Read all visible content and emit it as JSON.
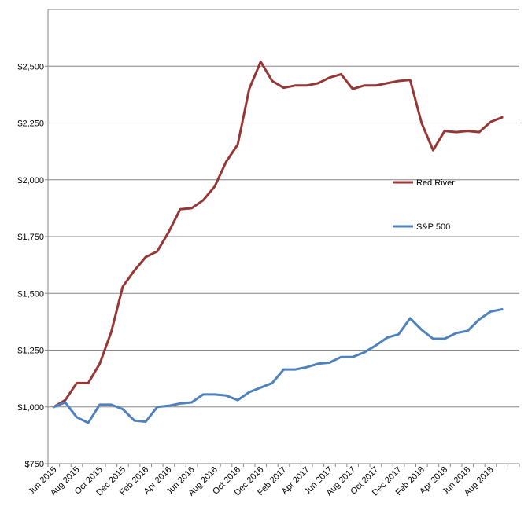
{
  "chart_data": {
    "type": "line",
    "title": "",
    "xlabel": "",
    "ylabel": "",
    "ylim": [
      750,
      2750
    ],
    "grid": "horizontal",
    "legend_position": "right-inside",
    "x": [
      "Jun 2015",
      "Jul 2015",
      "Aug 2015",
      "Sep 2015",
      "Oct 2015",
      "Nov 2015",
      "Dec 2015",
      "Jan 2016",
      "Feb 2016",
      "Mar 2016",
      "Apr 2016",
      "May 2016",
      "Jun 2016",
      "Jul 2016",
      "Aug 2016",
      "Sep 2016",
      "Oct 2016",
      "Nov 2016",
      "Dec 2016",
      "Jan 2017",
      "Feb 2017",
      "Mar 2017",
      "Apr 2017",
      "May 2017",
      "Jun 2017",
      "Jul 2017",
      "Aug 2017",
      "Sep 2017",
      "Oct 2017",
      "Nov 2017",
      "Dec 2017",
      "Jan 2018",
      "Feb 2018",
      "Mar 2018",
      "Apr 2018",
      "May 2018",
      "Jun 2018",
      "Jul 2018",
      "Aug 2018",
      "Sep 2018",
      "Oct 2018"
    ],
    "x_tick_labels": [
      "Jun 2015",
      "Aug 2015",
      "Oct 2015",
      "Dec 2015",
      "Feb 2016",
      "Apr 2016",
      "Jun 2016",
      "Aug 2016",
      "Oct 2016",
      "Dec 2016",
      "Feb 2017",
      "Apr 2017",
      "Jun 2017",
      "Aug 2017",
      "Oct 2017",
      "Dec 2017",
      "Feb 2018",
      "Apr 2018",
      "Jun 2018",
      "Aug 2018"
    ],
    "y_ticks": [
      750,
      1000,
      1250,
      1500,
      1750,
      2000,
      2250,
      2500
    ],
    "y_tick_labels": [
      "$750",
      "$1,000",
      "$1,250",
      "$1,500",
      "$1,750",
      "$2,000",
      "$2,250",
      "$2,500"
    ],
    "series": [
      {
        "name": "Red River",
        "color": "#953735",
        "values": [
          1000,
          1030,
          1105,
          1105,
          1190,
          1330,
          1530,
          1600,
          1660,
          1685,
          1770,
          1870,
          1875,
          1910,
          1970,
          2080,
          2155,
          2400,
          2520,
          2435,
          2405,
          2415,
          2415,
          2425,
          2450,
          2465,
          2400,
          2415,
          2415,
          2425,
          2435,
          2440,
          2250,
          2130,
          2215,
          2210,
          2215,
          2210,
          2255,
          2275,
          null
        ]
      },
      {
        "name": "S&P 500",
        "color": "#4F81BD",
        "values": [
          1000,
          1020,
          955,
          930,
          1010,
          1010,
          990,
          940,
          935,
          1000,
          1005,
          1015,
          1020,
          1055,
          1055,
          1050,
          1030,
          1065,
          1085,
          1105,
          1165,
          1165,
          1175,
          1190,
          1195,
          1220,
          1220,
          1240,
          1270,
          1305,
          1320,
          1390,
          1340,
          1300,
          1300,
          1325,
          1335,
          1385,
          1420,
          1430,
          null
        ]
      }
    ]
  }
}
